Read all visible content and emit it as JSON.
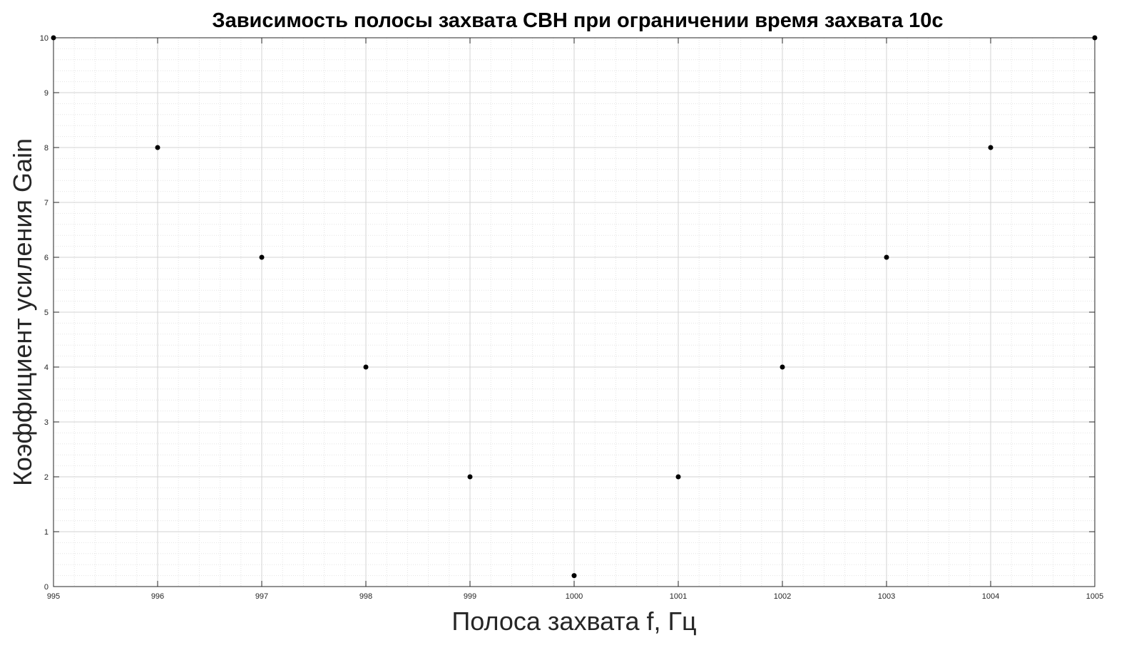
{
  "chart_data": {
    "type": "scatter",
    "title": "Зависимость полосы захвата СВН при ограничении время захвата 10с",
    "xlabel": "Полоса захвата f, Гц",
    "ylabel": "Коэффициент усиления Gain",
    "xlim": [
      995,
      1005
    ],
    "ylim": [
      0,
      10
    ],
    "xticks": [
      "995",
      "996",
      "997",
      "998",
      "999",
      "1000",
      "1001",
      "1002",
      "1003",
      "1004",
      "1005"
    ],
    "yticks": [
      "0",
      "1",
      "2",
      "3",
      "4",
      "5",
      "6",
      "7",
      "8",
      "9",
      "10"
    ],
    "grid": "on",
    "minor_grid": "on",
    "marker": "filled-dot",
    "colors": {
      "marker": "#000000",
      "axis": "#262626",
      "major_grid": "#d3d3d3",
      "minor_grid": "#e4e4e4"
    },
    "series": [
      {
        "x": [
          995,
          996,
          997,
          998,
          999,
          1000,
          1001,
          1002,
          1003,
          1004,
          1005
        ],
        "y": [
          10,
          8,
          6,
          4,
          2,
          0.2,
          2,
          4,
          6,
          8,
          10
        ]
      }
    ]
  }
}
